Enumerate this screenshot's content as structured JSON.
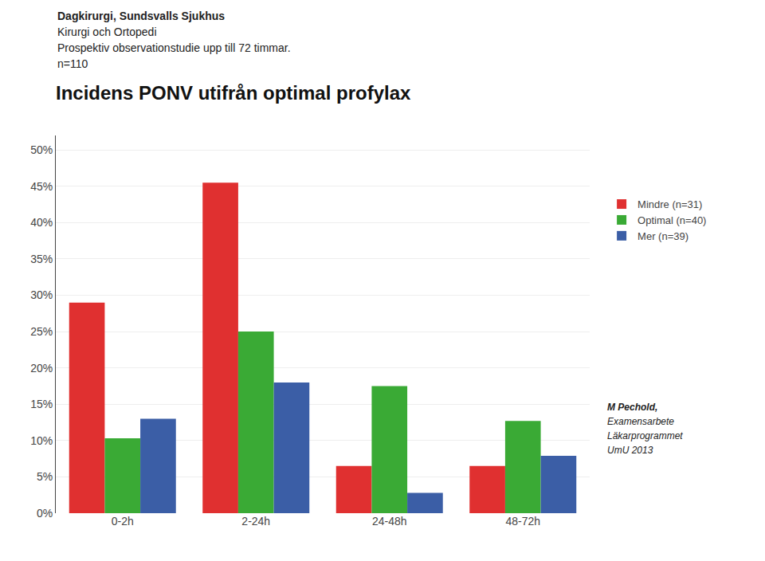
{
  "chart_data": {
    "type": "bar",
    "title": "Incidens PONV utifrån optimal profylax",
    "subtitle": [
      "Dagkirurgi, Sundsvalls Sjukhus",
      "Kirurgi och Ortopedi",
      "Prospektiv observationstudie upp till 72 timmar.",
      "n=110"
    ],
    "annotations": [
      "M Pechold,",
      "Examensarbete",
      "Läkarprogrammet",
      "UmU 2013"
    ],
    "categories": [
      "0-2h",
      "2-24h",
      "24-48h",
      "48-72h"
    ],
    "series": [
      {
        "name": "Mindre (n=31)",
        "color": "#e03030",
        "values": [
          0.29,
          0.455,
          0.065,
          0.065
        ]
      },
      {
        "name": "Optimal (n=40)",
        "color": "#3aaa35",
        "values": [
          0.103,
          0.25,
          0.175,
          0.127
        ]
      },
      {
        "name": "Mer (n=39)",
        "color": "#3b5ea6",
        "values": [
          0.13,
          0.18,
          0.028,
          0.079
        ]
      }
    ],
    "ylim": [
      0,
      0.52
    ],
    "yticks": [
      {
        "value": 0.0,
        "label": "0%"
      },
      {
        "value": 0.05,
        "label": "5%"
      },
      {
        "value": 0.1,
        "label": "10%"
      },
      {
        "value": 0.15,
        "label": "15%"
      },
      {
        "value": 0.2,
        "label": "20%"
      },
      {
        "value": 0.25,
        "label": "25%"
      },
      {
        "value": 0.3,
        "label": "30%"
      },
      {
        "value": 0.35,
        "label": "35%"
      },
      {
        "value": 0.4,
        "label": "40%"
      },
      {
        "value": 0.45,
        "label": "45%"
      },
      {
        "value": 0.5,
        "label": "50%"
      }
    ],
    "grid": true,
    "legend": "right"
  }
}
